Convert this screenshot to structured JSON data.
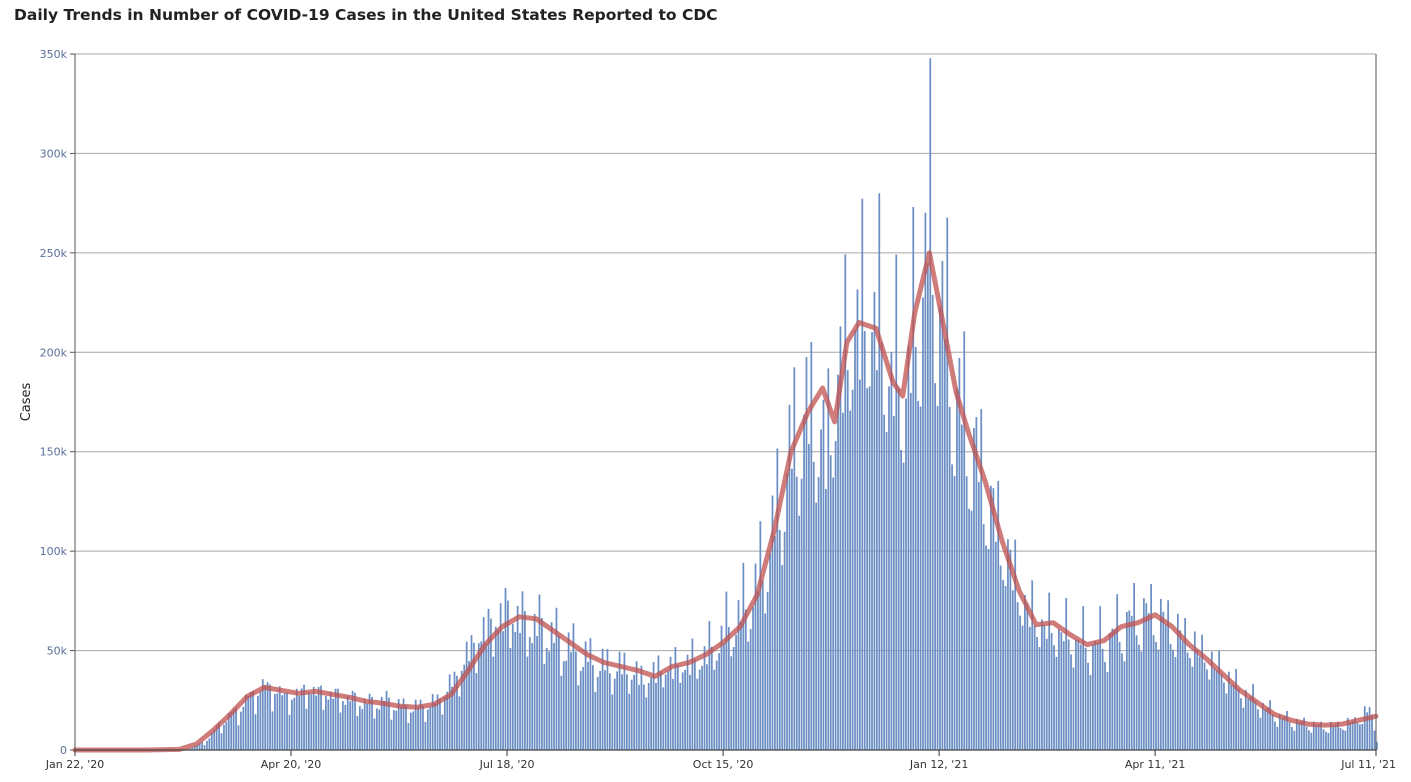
{
  "chart_data": {
    "type": "bar",
    "title": "Daily Trends in Number of COVID-19 Cases in the United States Reported to CDC",
    "xlabel": "",
    "ylabel": "Cases",
    "ylim": [
      0,
      350000
    ],
    "y_ticks": [
      {
        "value": 0,
        "label": "0"
      },
      {
        "value": 50000,
        "label": "50k"
      },
      {
        "value": 100000,
        "label": "100k"
      },
      {
        "value": 150000,
        "label": "150k"
      },
      {
        "value": 200000,
        "label": "200k"
      },
      {
        "value": 250000,
        "label": "250k"
      },
      {
        "value": 300000,
        "label": "300k"
      },
      {
        "value": 350000,
        "label": "350k"
      }
    ],
    "x_ticks": [
      {
        "value": "2020-01-22",
        "label": "Jan 22, '20"
      },
      {
        "value": "2020-04-20",
        "label": "Apr 20, '20"
      },
      {
        "value": "2020-07-18",
        "label": "Jul 18, '20"
      },
      {
        "value": "2020-10-15",
        "label": "Oct 15, '20"
      },
      {
        "value": "2021-01-12",
        "label": "Jan 12, '21"
      },
      {
        "value": "2021-04-11",
        "label": "Apr 11, '21"
      },
      {
        "value": "2021-07-11",
        "label": "Jul 11, '21"
      }
    ],
    "grid": true,
    "bar_color": "#6b8fc4",
    "line_color": "#c0504d",
    "series": [
      {
        "type": "bar",
        "points": [
          [
            "2020-01-22",
            0
          ],
          [
            "2020-02-15",
            0
          ],
          [
            "2020-03-01",
            100
          ],
          [
            "2020-03-08",
            500
          ],
          [
            "2020-03-15",
            4000
          ],
          [
            "2020-03-22",
            14000
          ],
          [
            "2020-03-29",
            21000
          ],
          [
            "2020-04-05",
            30000
          ],
          [
            "2020-04-10",
            33000
          ],
          [
            "2020-04-15",
            29000
          ],
          [
            "2020-04-20",
            27000
          ],
          [
            "2020-04-25",
            31000
          ],
          [
            "2020-05-01",
            30000
          ],
          [
            "2020-05-08",
            28000
          ],
          [
            "2020-05-15",
            26000
          ],
          [
            "2020-05-22",
            24000
          ],
          [
            "2020-05-29",
            25000
          ],
          [
            "2020-06-05",
            22000
          ],
          [
            "2020-06-12",
            22000
          ],
          [
            "2020-06-19",
            25000
          ],
          [
            "2020-06-26",
            36000
          ],
          [
            "2020-07-03",
            53000
          ],
          [
            "2020-07-10",
            64000
          ],
          [
            "2020-07-18",
            72000
          ],
          [
            "2020-07-25",
            66000
          ],
          [
            "2020-08-01",
            63000
          ],
          [
            "2020-08-08",
            56000
          ],
          [
            "2020-08-15",
            50000
          ],
          [
            "2020-08-22",
            45000
          ],
          [
            "2020-08-29",
            42000
          ],
          [
            "2020-09-05",
            42000
          ],
          [
            "2020-09-12",
            36000
          ],
          [
            "2020-09-19",
            42000
          ],
          [
            "2020-09-26",
            44000
          ],
          [
            "2020-10-03",
            46000
          ],
          [
            "2020-10-10",
            52000
          ],
          [
            "2020-10-15",
            60000
          ],
          [
            "2020-10-22",
            70000
          ],
          [
            "2020-10-29",
            85000
          ],
          [
            "2020-11-05",
            115000
          ],
          [
            "2020-11-12",
            155000
          ],
          [
            "2020-11-19",
            175000
          ],
          [
            "2020-11-26",
            155000
          ],
          [
            "2020-12-03",
            205000
          ],
          [
            "2020-12-10",
            225000
          ],
          [
            "2020-12-17",
            225000
          ],
          [
            "2020-12-24",
            190000
          ],
          [
            "2020-12-31",
            195000
          ],
          [
            "2021-01-03",
            230000
          ],
          [
            "2021-01-08",
            265000
          ],
          [
            "2021-01-12",
            230000
          ],
          [
            "2021-01-19",
            180000
          ],
          [
            "2021-01-26",
            155000
          ],
          [
            "2021-02-02",
            125000
          ],
          [
            "2021-02-09",
            100000
          ],
          [
            "2021-02-16",
            75000
          ],
          [
            "2021-02-23",
            65000
          ],
          [
            "2021-03-02",
            62000
          ],
          [
            "2021-03-09",
            57000
          ],
          [
            "2021-03-16",
            54000
          ],
          [
            "2021-03-23",
            58000
          ],
          [
            "2021-03-30",
            66000
          ],
          [
            "2021-04-05",
            70000
          ],
          [
            "2021-04-11",
            70000
          ],
          [
            "2021-04-18",
            63000
          ],
          [
            "2021-04-25",
            56000
          ],
          [
            "2021-05-02",
            48000
          ],
          [
            "2021-05-09",
            40000
          ],
          [
            "2021-05-16",
            31000
          ],
          [
            "2021-05-23",
            25000
          ],
          [
            "2021-05-30",
            18000
          ],
          [
            "2021-06-06",
            15000
          ],
          [
            "2021-06-13",
            13000
          ],
          [
            "2021-06-20",
            12000
          ],
          [
            "2021-06-27",
            13000
          ],
          [
            "2021-07-04",
            16000
          ],
          [
            "2021-07-08",
            22000
          ],
          [
            "2021-07-11",
            5000
          ]
        ]
      },
      {
        "type": "line",
        "name": "",
        "points": [
          [
            "2020-01-22",
            0
          ],
          [
            "2020-02-20",
            0
          ],
          [
            "2020-03-05",
            300
          ],
          [
            "2020-03-12",
            3000
          ],
          [
            "2020-03-19",
            10000
          ],
          [
            "2020-03-26",
            18000
          ],
          [
            "2020-04-02",
            27000
          ],
          [
            "2020-04-09",
            31500
          ],
          [
            "2020-04-16",
            30000
          ],
          [
            "2020-04-23",
            28500
          ],
          [
            "2020-04-30",
            29500
          ],
          [
            "2020-05-07",
            28000
          ],
          [
            "2020-05-14",
            26500
          ],
          [
            "2020-05-21",
            24500
          ],
          [
            "2020-05-28",
            23500
          ],
          [
            "2020-06-04",
            22000
          ],
          [
            "2020-06-11",
            21500
          ],
          [
            "2020-06-18",
            23000
          ],
          [
            "2020-06-25",
            28000
          ],
          [
            "2020-07-02",
            40000
          ],
          [
            "2020-07-09",
            53000
          ],
          [
            "2020-07-16",
            62000
          ],
          [
            "2020-07-23",
            67000
          ],
          [
            "2020-07-30",
            66000
          ],
          [
            "2020-08-06",
            60000
          ],
          [
            "2020-08-13",
            54000
          ],
          [
            "2020-08-20",
            48000
          ],
          [
            "2020-08-27",
            44000
          ],
          [
            "2020-09-03",
            42000
          ],
          [
            "2020-09-10",
            40000
          ],
          [
            "2020-09-17",
            37000
          ],
          [
            "2020-09-24",
            42000
          ],
          [
            "2020-10-01",
            44000
          ],
          [
            "2020-10-08",
            48000
          ],
          [
            "2020-10-15",
            54000
          ],
          [
            "2020-10-22",
            62000
          ],
          [
            "2020-10-29",
            78000
          ],
          [
            "2020-11-05",
            110000
          ],
          [
            "2020-11-12",
            150000
          ],
          [
            "2020-11-19",
            170000
          ],
          [
            "2020-11-25",
            182000
          ],
          [
            "2020-11-30",
            165000
          ],
          [
            "2020-12-05",
            205000
          ],
          [
            "2020-12-10",
            215000
          ],
          [
            "2020-12-17",
            212000
          ],
          [
            "2020-12-24",
            185000
          ],
          [
            "2020-12-28",
            178000
          ],
          [
            "2021-01-02",
            220000
          ],
          [
            "2021-01-08",
            250000
          ],
          [
            "2021-01-12",
            225000
          ],
          [
            "2021-01-19",
            180000
          ],
          [
            "2021-01-24",
            160000
          ],
          [
            "2021-01-31",
            135000
          ],
          [
            "2021-02-07",
            105000
          ],
          [
            "2021-02-14",
            80000
          ],
          [
            "2021-02-21",
            63000
          ],
          [
            "2021-02-28",
            64000
          ],
          [
            "2021-03-07",
            58000
          ],
          [
            "2021-03-14",
            53000
          ],
          [
            "2021-03-21",
            55000
          ],
          [
            "2021-03-28",
            62000
          ],
          [
            "2021-04-04",
            64000
          ],
          [
            "2021-04-11",
            68000
          ],
          [
            "2021-04-18",
            62000
          ],
          [
            "2021-04-25",
            53000
          ],
          [
            "2021-05-02",
            46000
          ],
          [
            "2021-05-09",
            38000
          ],
          [
            "2021-05-16",
            30000
          ],
          [
            "2021-05-23",
            24000
          ],
          [
            "2021-05-30",
            18000
          ],
          [
            "2021-06-06",
            15000
          ],
          [
            "2021-06-13",
            13000
          ],
          [
            "2021-06-20",
            12500
          ],
          [
            "2021-06-27",
            13000
          ],
          [
            "2021-07-04",
            15000
          ],
          [
            "2021-07-11",
            17000
          ]
        ]
      }
    ]
  }
}
